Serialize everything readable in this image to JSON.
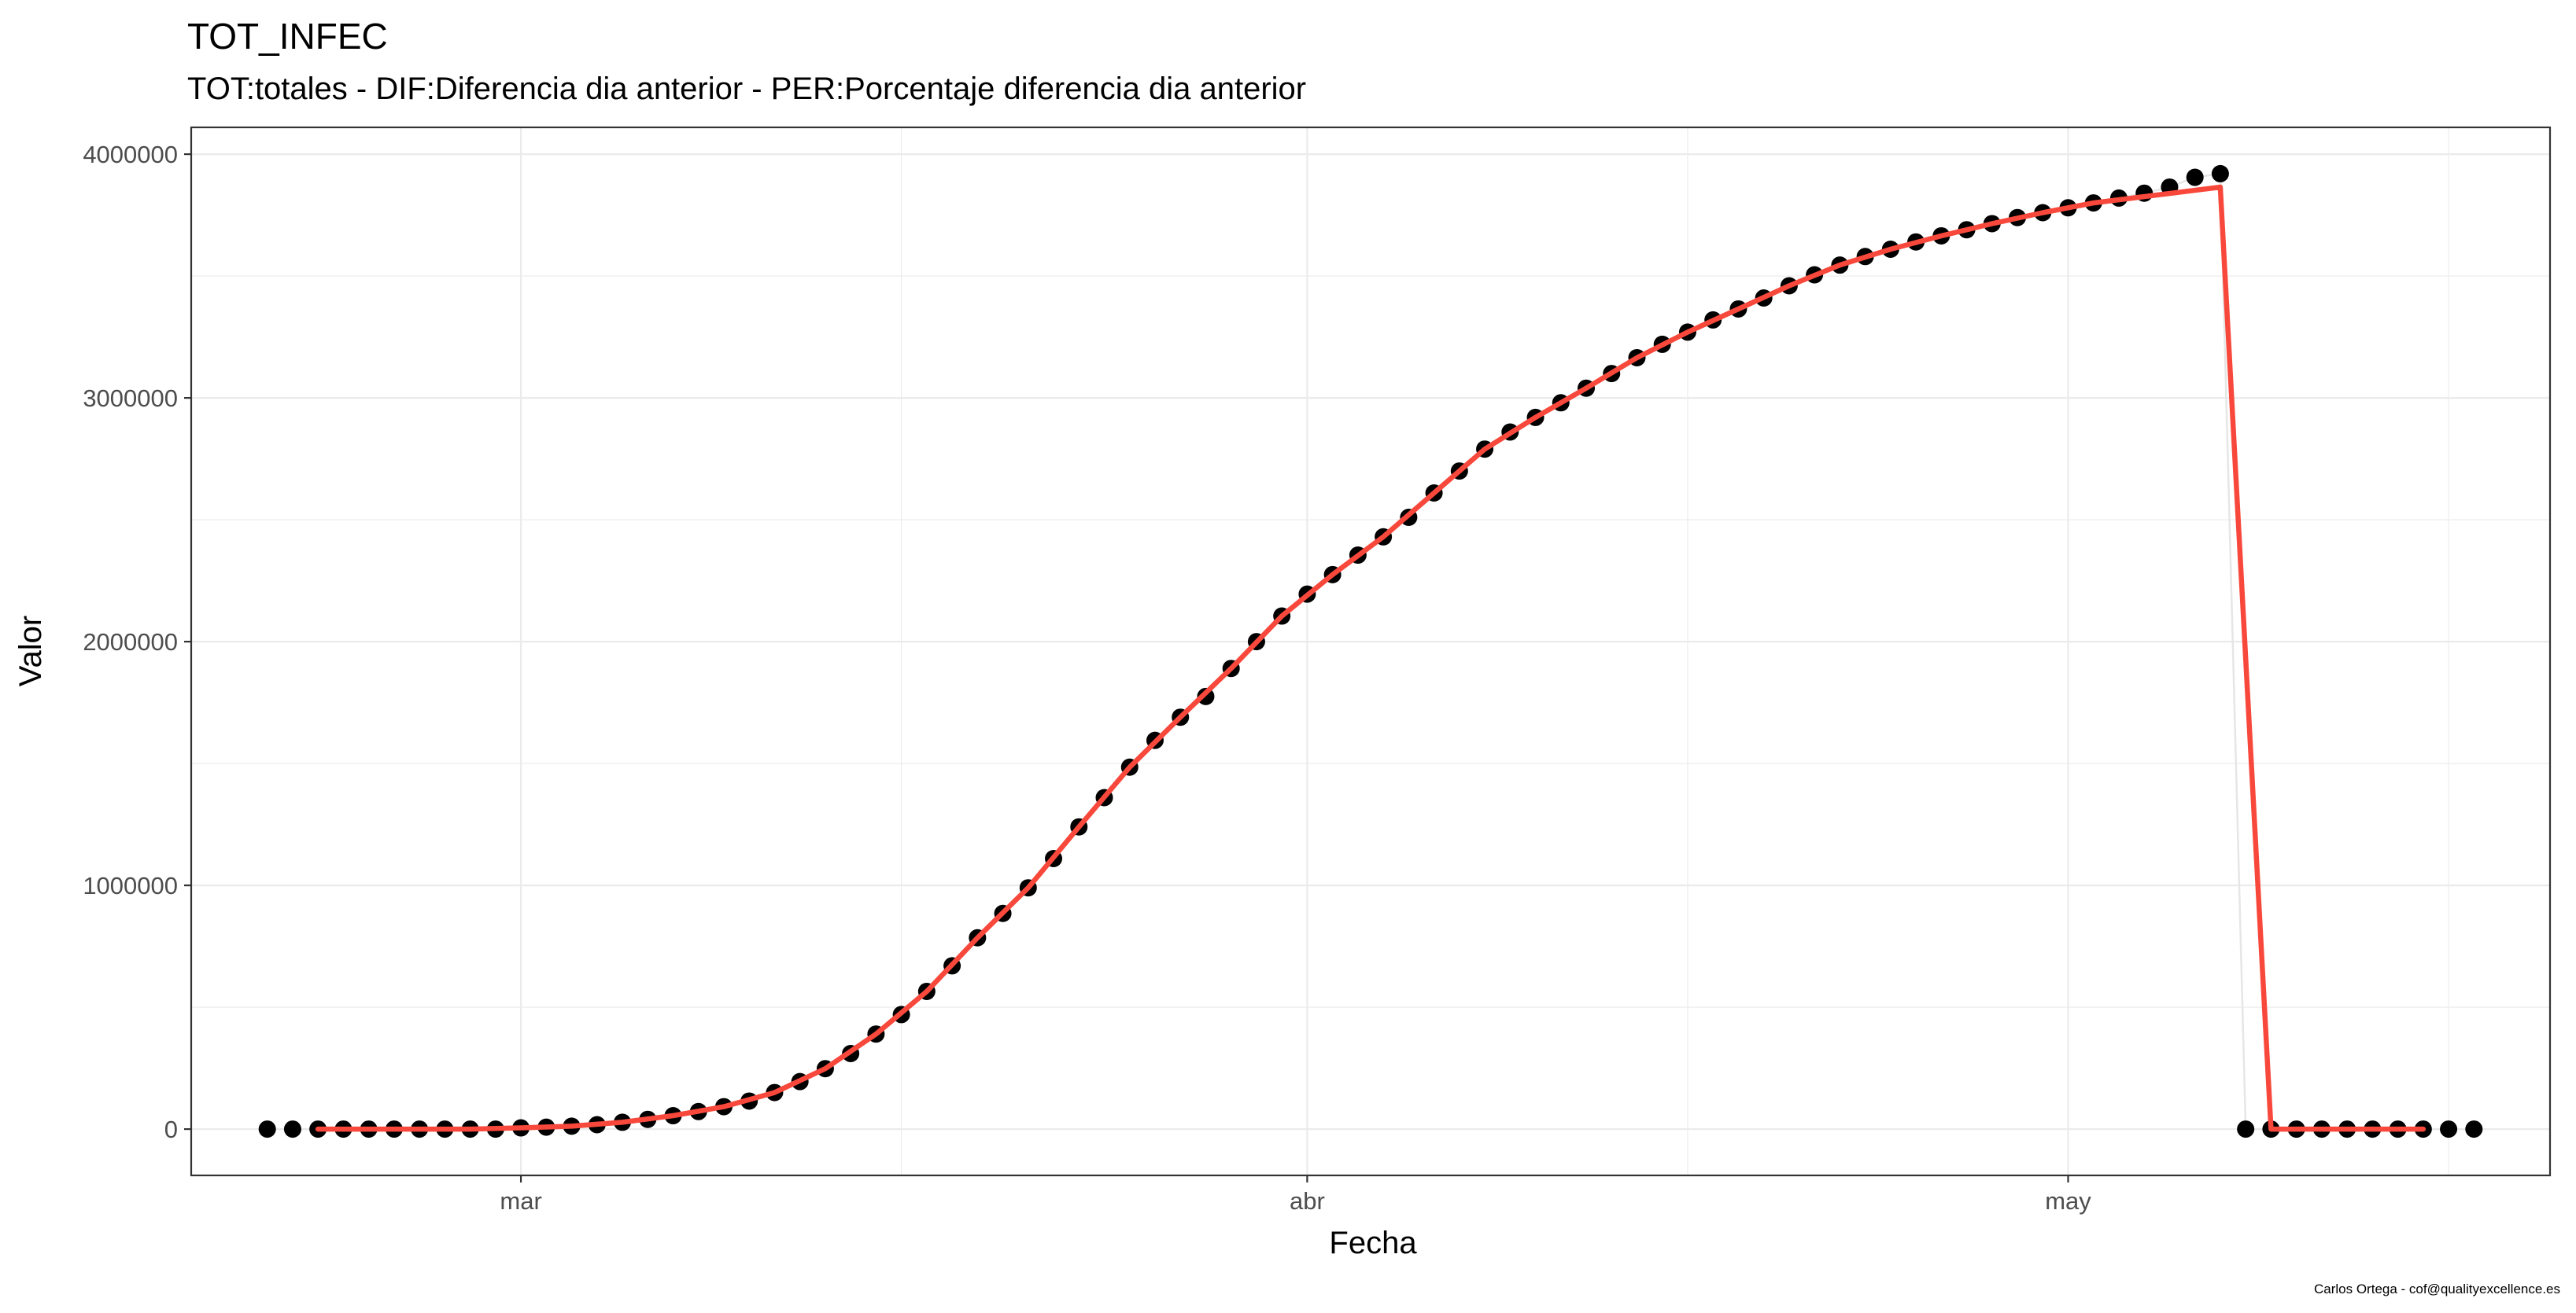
{
  "chart_data": {
    "type": "line",
    "title": "TOT_INFEC",
    "subtitle": "TOT:totales - DIF:Diferencia dia anterior - PER:Porcentaje diferencia dia anterior",
    "xlabel": "Fecha",
    "ylabel": "Valor",
    "caption": "Carlos Ortega - cof@qualityexcellence.es",
    "x_ticks": [
      "mar",
      "abr",
      "may"
    ],
    "y_ticks": [
      "0",
      "1000000",
      "2000000",
      "3000000",
      "4000000"
    ],
    "ylim": [
      -190000,
      4110000
    ],
    "grid": true,
    "legend": "none",
    "colors": {
      "points": "#000000",
      "smooth": "#f8483c",
      "panel_border": "#333333",
      "grid": "#ebebeb"
    },
    "series": [
      {
        "kind": "points",
        "x": [
          "2020-02-20",
          "2020-02-21",
          "2020-02-22",
          "2020-02-23",
          "2020-02-24",
          "2020-02-25",
          "2020-02-26",
          "2020-02-27",
          "2020-02-28",
          "2020-02-29",
          "2020-03-01",
          "2020-03-02",
          "2020-03-03",
          "2020-03-04",
          "2020-03-05",
          "2020-03-06",
          "2020-03-07",
          "2020-03-08",
          "2020-03-09",
          "2020-03-10",
          "2020-03-11",
          "2020-03-12",
          "2020-03-13",
          "2020-03-14",
          "2020-03-15",
          "2020-03-16",
          "2020-03-17",
          "2020-03-18",
          "2020-03-19",
          "2020-03-20",
          "2020-03-21",
          "2020-03-22",
          "2020-03-23",
          "2020-03-24",
          "2020-03-25",
          "2020-03-26",
          "2020-03-27",
          "2020-03-28",
          "2020-03-29",
          "2020-03-30",
          "2020-03-31",
          "2020-04-01",
          "2020-04-02",
          "2020-04-03",
          "2020-04-04",
          "2020-04-05",
          "2020-04-06",
          "2020-04-07",
          "2020-04-08",
          "2020-04-09",
          "2020-04-10",
          "2020-04-11",
          "2020-04-12",
          "2020-04-13",
          "2020-04-14",
          "2020-04-15",
          "2020-04-16",
          "2020-04-17",
          "2020-04-18",
          "2020-04-19",
          "2020-04-20",
          "2020-04-21",
          "2020-04-22",
          "2020-04-23",
          "2020-04-24",
          "2020-04-25",
          "2020-04-26",
          "2020-04-27",
          "2020-04-28",
          "2020-04-29",
          "2020-04-30",
          "2020-05-01",
          "2020-05-02",
          "2020-05-03",
          "2020-05-04",
          "2020-05-05",
          "2020-05-06",
          "2020-05-07",
          "2020-05-08",
          "2020-05-09",
          "2020-05-10",
          "2020-05-11",
          "2020-05-12",
          "2020-05-13",
          "2020-05-14",
          "2020-05-15",
          "2020-05-16",
          "2020-05-17"
        ],
        "y": [
          0,
          0,
          0,
          0,
          0,
          0,
          0,
          0,
          0,
          0,
          5000,
          8000,
          12000,
          18000,
          28000,
          40000,
          55000,
          72000,
          92000,
          115000,
          150000,
          195000,
          248000,
          310000,
          390000,
          470000,
          565000,
          670000,
          785000,
          885000,
          990000,
          1110000,
          1240000,
          1360000,
          1485000,
          1595000,
          1690000,
          1775000,
          1890000,
          2000000,
          2105000,
          2195000,
          2275000,
          2355000,
          2430000,
          2510000,
          2610000,
          2700000,
          2790000,
          2860000,
          2920000,
          2980000,
          3040000,
          3100000,
          3165000,
          3220000,
          3270000,
          3320000,
          3365000,
          3410000,
          3460000,
          3505000,
          3545000,
          3580000,
          3610000,
          3640000,
          3665000,
          3690000,
          3715000,
          3740000,
          3760000,
          3780000,
          3800000,
          3820000,
          3840000,
          3865000,
          3905000,
          3920000,
          0,
          0,
          0,
          0,
          0,
          0,
          0,
          0,
          0,
          0
        ]
      },
      {
        "kind": "smooth",
        "x": [
          "2020-02-22",
          "2020-02-25",
          "2020-02-28",
          "2020-03-01",
          "2020-03-03",
          "2020-03-05",
          "2020-03-07",
          "2020-03-09",
          "2020-03-11",
          "2020-03-13",
          "2020-03-15",
          "2020-03-17",
          "2020-03-19",
          "2020-03-21",
          "2020-03-23",
          "2020-03-25",
          "2020-03-27",
          "2020-03-29",
          "2020-03-31",
          "2020-04-02",
          "2020-04-04",
          "2020-04-06",
          "2020-04-08",
          "2020-04-10",
          "2020-04-12",
          "2020-04-14",
          "2020-04-16",
          "2020-04-18",
          "2020-04-20",
          "2020-04-22",
          "2020-04-24",
          "2020-04-26",
          "2020-04-28",
          "2020-04-30",
          "2020-05-02",
          "2020-05-07",
          "2020-05-09",
          "2020-05-12",
          "2020-05-15"
        ],
        "y": [
          0,
          0,
          0,
          5000,
          12000,
          28000,
          55000,
          92000,
          150000,
          248000,
          390000,
          565000,
          785000,
          990000,
          1240000,
          1485000,
          1690000,
          1890000,
          2105000,
          2275000,
          2430000,
          2610000,
          2790000,
          2920000,
          3040000,
          3165000,
          3270000,
          3365000,
          3460000,
          3545000,
          3610000,
          3665000,
          3715000,
          3760000,
          3800000,
          3865000,
          0,
          0,
          0
        ]
      }
    ]
  }
}
